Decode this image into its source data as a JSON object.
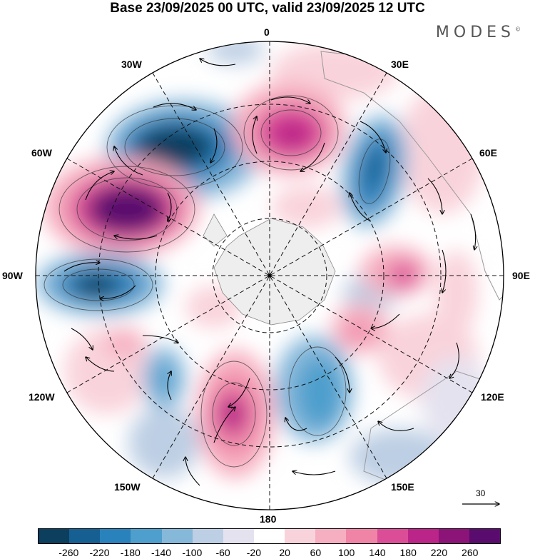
{
  "title": "Base 23/09/2025 00 UTC, valid 23/09/2025 12 UTC",
  "brand": {
    "name": "MODES",
    "mark": "©"
  },
  "longitudes": {
    "n0": "0",
    "e30": "30E",
    "e60": "60E",
    "e90": "90E",
    "e120": "120E",
    "e150": "150E",
    "s180": "180",
    "w150": "150W",
    "w120": "120W",
    "w90": "90W",
    "w60": "60W",
    "w30": "30W"
  },
  "reference_vector": {
    "value": "30"
  },
  "colorbar": {
    "colors": [
      "#0c3e5e",
      "#165f93",
      "#2a82bc",
      "#4e9fcd",
      "#86b8da",
      "#bdcfe4",
      "#e4e2ef",
      "#ffffff",
      "#f9d3db",
      "#f6afc0",
      "#ef84a7",
      "#dc4d98",
      "#bb2488",
      "#8c1478",
      "#5a0c6e"
    ],
    "labels": [
      "-260",
      "-220",
      "-180",
      "-140",
      "-100",
      "-60",
      "-20",
      "20",
      "60",
      "100",
      "140",
      "180",
      "220",
      "260"
    ]
  }
}
